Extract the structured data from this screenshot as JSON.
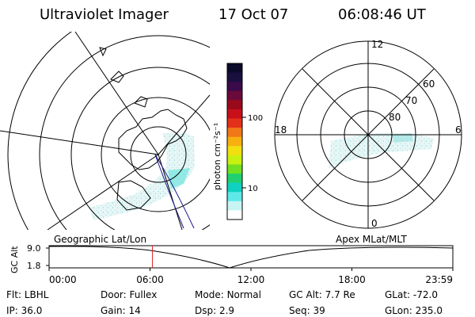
{
  "header": {
    "title": "Ultraviolet Imager",
    "date": "17 Oct 07",
    "time": "06:08:46 UT"
  },
  "colorbar": {
    "unit_label": "photon cm⁻²s⁻¹",
    "tick_labels": [
      "100",
      "10"
    ],
    "colors": [
      "#0a0a2a",
      "#1a1040",
      "#3a0a4a",
      "#6a0a3a",
      "#9a0a1a",
      "#c8101a",
      "#e2301a",
      "#f07818",
      "#f8b010",
      "#f0e010",
      "#c8f010",
      "#70e020",
      "#20d070",
      "#10d0c0",
      "#60e8e8",
      "#c8f4f4",
      "#ffffff"
    ]
  },
  "left_map": {
    "label": "Geographic Lat/Lon"
  },
  "right_map": {
    "label": "Apex MLat/MLT",
    "mlt_labels": [
      "12",
      "18",
      "6",
      "0"
    ],
    "mlat_labels": [
      "60",
      "70",
      "80"
    ]
  },
  "timeline": {
    "y_axis_label": "GC Alt",
    "y_ticks": [
      "9.0",
      "1.8"
    ],
    "x_ticks": [
      "00:00",
      "06:00",
      "12:00",
      "18:00",
      "23:59"
    ],
    "current_time_fraction": 0.256,
    "marker_color": "#e02020"
  },
  "info": {
    "row1": [
      {
        "label": "Flt:",
        "value": "LBHL"
      },
      {
        "label": "Door:",
        "value": "Fullex"
      },
      {
        "label": "Mode:",
        "value": "Normal"
      },
      {
        "label": "GC Alt:",
        "value": "7.7 Re"
      },
      {
        "label": "GLat:",
        "value": "-72.0"
      }
    ],
    "row2": [
      {
        "label": "IP:",
        "value": "36.0"
      },
      {
        "label": "Gain:",
        "value": "14"
      },
      {
        "label": "Dsp:",
        "value": "2.9"
      },
      {
        "label": "Seq:",
        "value": "39"
      },
      {
        "label": "GLon:",
        "value": "235.0"
      }
    ]
  }
}
